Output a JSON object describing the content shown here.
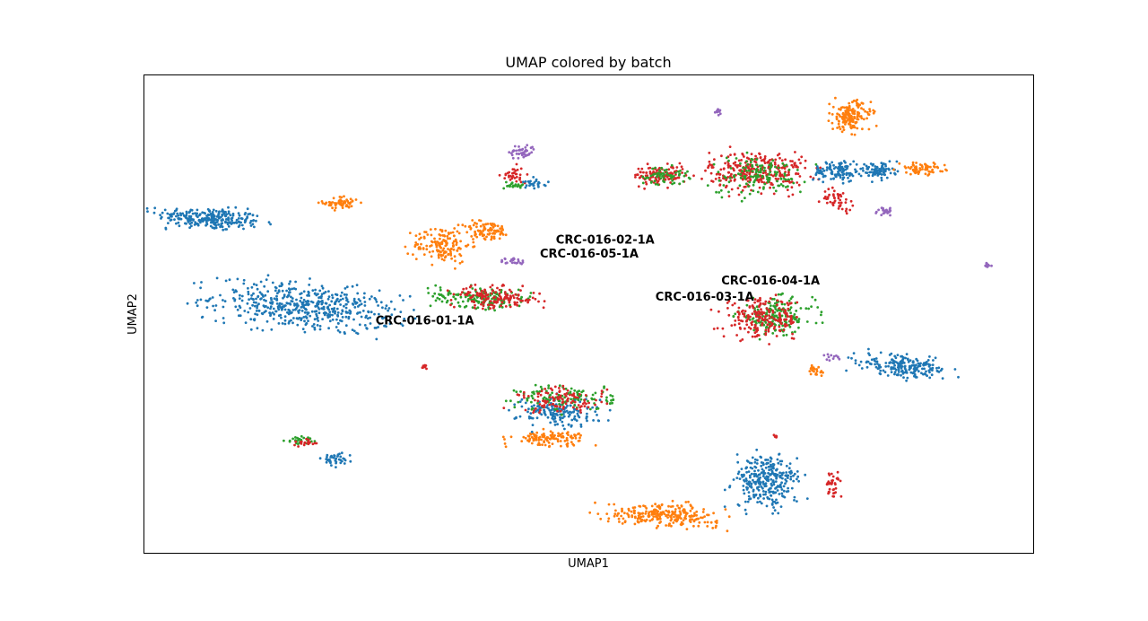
{
  "chart_data": {
    "type": "scatter",
    "title": "UMAP colored by batch",
    "xlabel": "UMAP1",
    "ylabel": "UMAP2",
    "xlim": [
      0,
      100
    ],
    "ylim": [
      0,
      100
    ],
    "grid": false,
    "ticks": false,
    "point_model": "clusters",
    "colors": {
      "blue": "#1f77b4",
      "orange": "#ff7f0e",
      "green": "#2ca02c",
      "red": "#d62728",
      "purple": "#9467bd"
    },
    "annotations": [
      {
        "text": "CRC-016-02-1A",
        "x": 46.3,
        "y": 64.8
      },
      {
        "text": "CRC-016-05-1A",
        "x": 44.5,
        "y": 61.8
      },
      {
        "text": "CRC-016-04-1A",
        "x": 64.9,
        "y": 56.2
      },
      {
        "text": "CRC-016-03-1A",
        "x": 57.5,
        "y": 52.8
      },
      {
        "text": "CRC-016-01-1A",
        "x": 26.0,
        "y": 47.8
      }
    ],
    "clusters": [
      {
        "color": "blue",
        "x": 7.3,
        "y": 70.0,
        "rx": 6.5,
        "ry": 2.5,
        "n": 260,
        "rot": -8
      },
      {
        "color": "orange",
        "x": 22.2,
        "y": 73.3,
        "rx": 2.3,
        "ry": 1.5,
        "n": 60,
        "rot": 0
      },
      {
        "color": "blue",
        "x": 18.0,
        "y": 51.5,
        "rx": 11.5,
        "ry": 5.2,
        "n": 520,
        "rot": -12
      },
      {
        "color": "orange",
        "x": 33.5,
        "y": 64.5,
        "rx": 3.5,
        "ry": 4.2,
        "n": 150,
        "rot": 0
      },
      {
        "color": "orange",
        "x": 38.5,
        "y": 67.5,
        "rx": 3.0,
        "ry": 2.3,
        "n": 90,
        "rot": 0
      },
      {
        "color": "purple",
        "x": 41.5,
        "y": 61.0,
        "rx": 1.8,
        "ry": 0.9,
        "n": 25,
        "rot": 0
      },
      {
        "color": "green",
        "x": 38.0,
        "y": 53.5,
        "rx": 6.0,
        "ry": 2.4,
        "n": 160,
        "rot": -8
      },
      {
        "color": "red",
        "x": 39.5,
        "y": 53.5,
        "rx": 5.5,
        "ry": 2.4,
        "n": 150,
        "rot": -8
      },
      {
        "color": "purple",
        "x": 42.5,
        "y": 84.0,
        "rx": 1.6,
        "ry": 1.7,
        "n": 45,
        "rot": 0
      },
      {
        "color": "red",
        "x": 41.5,
        "y": 79.0,
        "rx": 1.4,
        "ry": 2.0,
        "n": 35,
        "rot": 0
      },
      {
        "color": "blue",
        "x": 44.0,
        "y": 77.5,
        "rx": 1.4,
        "ry": 1.2,
        "n": 25,
        "rot": 0
      },
      {
        "color": "green",
        "x": 41.5,
        "y": 77.0,
        "rx": 1.2,
        "ry": 1.0,
        "n": 20,
        "rot": 0
      },
      {
        "color": "red",
        "x": 58.0,
        "y": 79.0,
        "rx": 3.3,
        "ry": 2.3,
        "n": 120,
        "rot": 0
      },
      {
        "color": "green",
        "x": 58.5,
        "y": 79.0,
        "rx": 3.0,
        "ry": 2.0,
        "n": 60,
        "rot": 0
      },
      {
        "color": "red",
        "x": 69.0,
        "y": 80.0,
        "rx": 6.0,
        "ry": 4.5,
        "n": 300,
        "rot": 0
      },
      {
        "color": "green",
        "x": 69.0,
        "y": 79.0,
        "rx": 6.0,
        "ry": 4.5,
        "n": 130,
        "rot": 0
      },
      {
        "color": "red",
        "x": 78.0,
        "y": 74.0,
        "rx": 2.0,
        "ry": 2.5,
        "n": 45,
        "rot": 0
      },
      {
        "color": "blue",
        "x": 78.0,
        "y": 80.0,
        "rx": 3.0,
        "ry": 2.5,
        "n": 110,
        "rot": 0
      },
      {
        "color": "blue",
        "x": 82.5,
        "y": 80.0,
        "rx": 2.2,
        "ry": 2.0,
        "n": 80,
        "rot": 0
      },
      {
        "color": "orange",
        "x": 79.5,
        "y": 91.5,
        "rx": 2.5,
        "ry": 3.5,
        "n": 160,
        "rot": 0
      },
      {
        "color": "orange",
        "x": 87.5,
        "y": 80.5,
        "rx": 2.8,
        "ry": 1.3,
        "n": 70,
        "rot": 0
      },
      {
        "color": "purple",
        "x": 83.5,
        "y": 71.5,
        "rx": 1.2,
        "ry": 0.9,
        "n": 22,
        "rot": 0
      },
      {
        "color": "purple",
        "x": 64.5,
        "y": 92.5,
        "rx": 0.6,
        "ry": 1.0,
        "n": 15,
        "rot": 0
      },
      {
        "color": "purple",
        "x": 94.8,
        "y": 60.3,
        "rx": 0.5,
        "ry": 0.7,
        "n": 12,
        "rot": 0
      },
      {
        "color": "green",
        "x": 71.0,
        "y": 49.5,
        "rx": 4.8,
        "ry": 4.0,
        "n": 180,
        "rot": 0
      },
      {
        "color": "red",
        "x": 69.5,
        "y": 49.0,
        "rx": 4.8,
        "ry": 4.5,
        "n": 210,
        "rot": 0
      },
      {
        "color": "blue",
        "x": 85.5,
        "y": 39.0,
        "rx": 5.5,
        "ry": 2.4,
        "n": 200,
        "rot": -15
      },
      {
        "color": "orange",
        "x": 75.5,
        "y": 38.0,
        "rx": 0.8,
        "ry": 1.5,
        "n": 22,
        "rot": 0
      },
      {
        "color": "purple",
        "x": 77.5,
        "y": 41.0,
        "rx": 1.0,
        "ry": 0.7,
        "n": 12,
        "rot": 0
      },
      {
        "color": "red",
        "x": 31.5,
        "y": 39.0,
        "rx": 0.3,
        "ry": 0.6,
        "n": 8,
        "rot": 0
      },
      {
        "color": "orange",
        "x": 45.5,
        "y": 24.0,
        "rx": 4.5,
        "ry": 1.6,
        "n": 120,
        "rot": 0
      },
      {
        "color": "blue",
        "x": 46.5,
        "y": 29.5,
        "rx": 5.0,
        "ry": 3.5,
        "n": 170,
        "rot": 0
      },
      {
        "color": "green",
        "x": 47.5,
        "y": 32.5,
        "rx": 6.0,
        "ry": 3.0,
        "n": 120,
        "rot": 0
      },
      {
        "color": "red",
        "x": 47.0,
        "y": 32.0,
        "rx": 5.5,
        "ry": 3.0,
        "n": 110,
        "rot": 0
      },
      {
        "color": "blue",
        "x": 21.5,
        "y": 19.5,
        "rx": 1.8,
        "ry": 1.5,
        "n": 40,
        "rot": 0
      },
      {
        "color": "green",
        "x": 17.5,
        "y": 23.5,
        "rx": 1.8,
        "ry": 0.9,
        "n": 25,
        "rot": 0
      },
      {
        "color": "red",
        "x": 18.0,
        "y": 23.0,
        "rx": 1.5,
        "ry": 0.8,
        "n": 20,
        "rot": 0
      },
      {
        "color": "blue",
        "x": 70.0,
        "y": 15.0,
        "rx": 4.0,
        "ry": 6.0,
        "n": 300,
        "rot": 0
      },
      {
        "color": "orange",
        "x": 58.5,
        "y": 8.0,
        "rx": 7.0,
        "ry": 2.5,
        "n": 260,
        "rot": -5
      },
      {
        "color": "red",
        "x": 77.5,
        "y": 14.0,
        "rx": 1.0,
        "ry": 3.0,
        "n": 35,
        "rot": 0
      },
      {
        "color": "red",
        "x": 71.0,
        "y": 24.5,
        "rx": 0.3,
        "ry": 0.5,
        "n": 6,
        "rot": 0
      }
    ]
  }
}
